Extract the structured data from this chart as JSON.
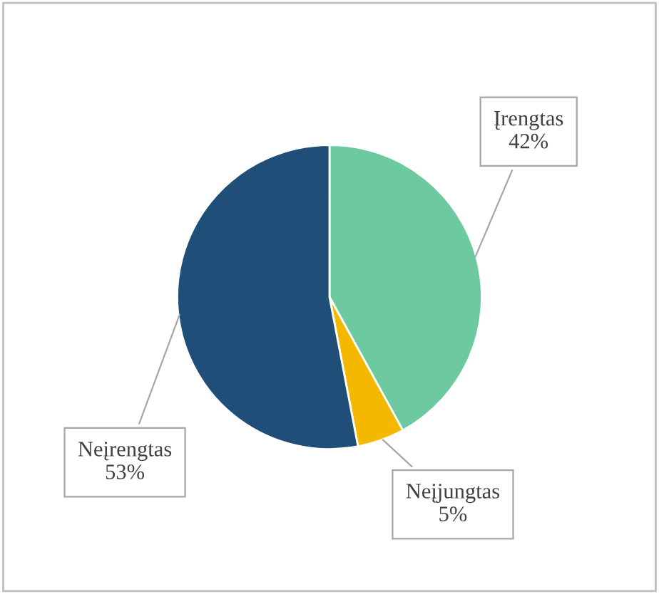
{
  "chart_data": {
    "type": "pie",
    "categories": [
      "Įrengtas",
      "Neįjungtas",
      "Neįrengtas"
    ],
    "values": [
      42,
      5,
      53
    ],
    "colors": [
      "#6cc9a0",
      "#f5b800",
      "#1f4e79"
    ],
    "value_labels": [
      "42%",
      "5%",
      "53%"
    ]
  }
}
